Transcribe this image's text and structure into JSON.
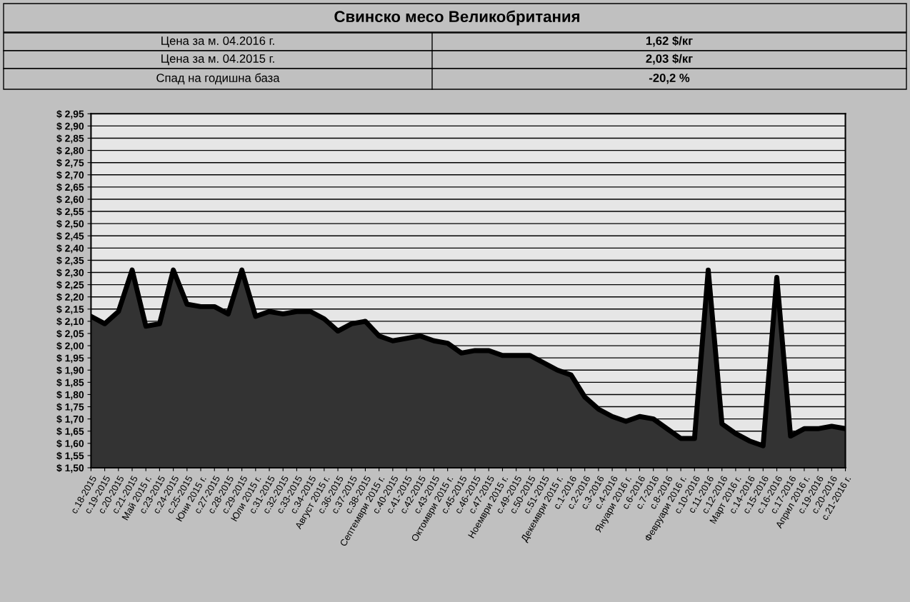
{
  "chart_data": {
    "type": "area",
    "title": "Свинско месо Великобритания",
    "annotations": [
      "Цена за м. 04.2016 г.",
      "1,62 $/кг",
      "Цена за м. 04.2015 г.",
      "2,03 $/кг",
      "Спад на годишна база",
      "-20,2 %"
    ],
    "categories": [
      "с.18-2015",
      "с.19-2015",
      "с.20-2015",
      "с.21-2015",
      "Май 2015 г.",
      "с.23-2015",
      "с.24-2015",
      "с.25-2015",
      "Юни 2015 г.",
      "с.27-2015",
      "с.28-2015",
      "с.29-2015",
      "Юли 2015 г.",
      "с.31-2015",
      "с.32-2015",
      "с.33-2015",
      "с.34-2015",
      "Август 2015 г.",
      "с.36-2015",
      "с.37-2015",
      "с.38-2015",
      "Септември 2015 г.",
      "с.40-2015",
      "с.41-2015",
      "с.42-2015",
      "с.43-2015",
      "Октомври 2015 г.",
      "с.45-2015",
      "с.46-2015",
      "с.47-2015",
      "Ноември 2015 г.",
      "с.49-2015",
      "с.50-2015",
      "с.51-2015",
      "Декември 2015 г.",
      "с.1-2016",
      "с.2-2016",
      "с.3-2016",
      "с.4-2016",
      "Януари 2016 г.",
      "с.6-2016",
      "с.7-2016",
      "с.8-2016",
      "Февруари 2016 г.",
      "с.10-2016",
      "с.11-2016",
      "с.12-2016",
      "Март 2016 г.",
      "с.14-2016",
      "с.15-2016",
      "с.16-2016",
      "с.17-2016",
      "Април 2016 г.",
      "с.19-2016",
      "с.20-2016",
      "с.21-2016 г."
    ],
    "series": [
      {
        "color": "#333333",
        "values": [
          2.12,
          2.09,
          2.14,
          2.31,
          2.08,
          2.09,
          2.31,
          2.17,
          2.16,
          2.16,
          2.13,
          2.31,
          2.12,
          2.14,
          2.13,
          2.14,
          2.14,
          2.11,
          2.06,
          2.09,
          2.1,
          2.04,
          2.02,
          2.03,
          2.04,
          2.02,
          2.01,
          1.97,
          1.98,
          1.98,
          1.96,
          1.96,
          1.96,
          1.93,
          1.9,
          1.88,
          1.79,
          1.74,
          1.71,
          1.69,
          1.71,
          1.7,
          1.66,
          1.62,
          1.62,
          2.31,
          1.68,
          1.64,
          1.61,
          1.59,
          2.28,
          1.63,
          1.66,
          1.66,
          1.67,
          1.66
        ]
      }
    ],
    "ylim": [
      1.5,
      2.95
    ],
    "yticks": [
      {
        "value": 1.5,
        "label": "$ 1,50"
      },
      {
        "value": 1.55,
        "label": "$ 1,55"
      },
      {
        "value": 1.6,
        "label": "$ 1,60"
      },
      {
        "value": 1.65,
        "label": "$ 1,65"
      },
      {
        "value": 1.7,
        "label": "$ 1,70"
      },
      {
        "value": 1.75,
        "label": "$ 1,75"
      },
      {
        "value": 1.8,
        "label": "$ 1,80"
      },
      {
        "value": 1.85,
        "label": "$ 1,85"
      },
      {
        "value": 1.9,
        "label": "$ 1,90"
      },
      {
        "value": 1.95,
        "label": "$ 1,95"
      },
      {
        "value": 2.0,
        "label": "$ 2,00"
      },
      {
        "value": 2.05,
        "label": "$ 2,05"
      },
      {
        "value": 2.1,
        "label": "$ 2,10"
      },
      {
        "value": 2.15,
        "label": "$ 2,15"
      },
      {
        "value": 2.2,
        "label": "$ 2,20"
      },
      {
        "value": 2.25,
        "label": "$ 2,25"
      },
      {
        "value": 2.3,
        "label": "$ 2,30"
      },
      {
        "value": 2.35,
        "label": "$ 2,35"
      },
      {
        "value": 2.4,
        "label": "$ 2,40"
      },
      {
        "value": 2.45,
        "label": "$ 2,45"
      },
      {
        "value": 2.5,
        "label": "$ 2,50"
      },
      {
        "value": 2.55,
        "label": "$ 2,55"
      },
      {
        "value": 2.6,
        "label": "$ 2,60"
      },
      {
        "value": 2.65,
        "label": "$ 2,65"
      },
      {
        "value": 2.7,
        "label": "$ 2,70"
      },
      {
        "value": 2.75,
        "label": "$ 2,75"
      },
      {
        "value": 2.8,
        "label": "$ 2,80"
      },
      {
        "value": 2.85,
        "label": "$ 2,85"
      },
      {
        "value": 2.9,
        "label": "$ 2,90"
      },
      {
        "value": 2.95,
        "label": "$ 2,95"
      }
    ],
    "grid": "y",
    "legend": false
  }
}
